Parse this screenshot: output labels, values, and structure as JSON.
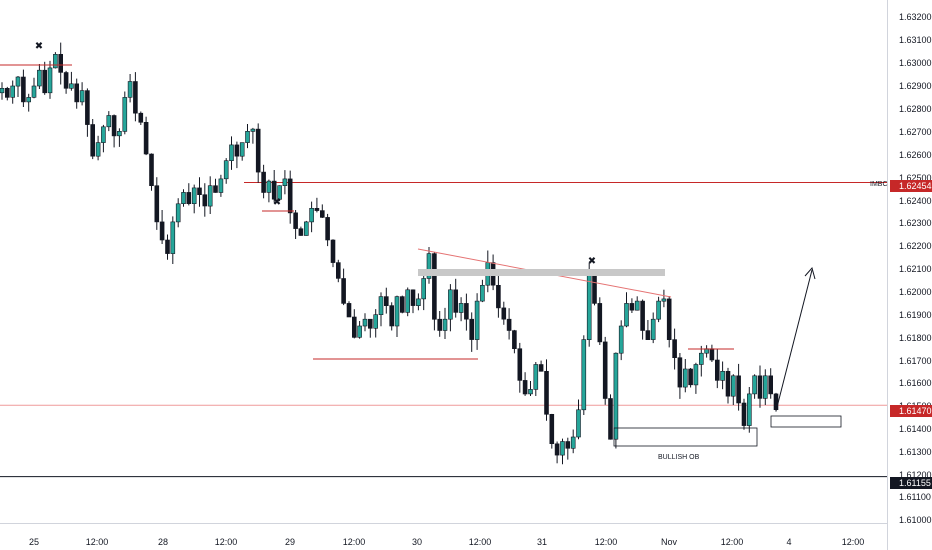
{
  "chart_data": {
    "type": "candlestick",
    "y_axis": {
      "ticks": [
        "1.63200",
        "1.63100",
        "1.63000",
        "1.62900",
        "1.62800",
        "1.62700",
        "1.62600",
        "1.62500",
        "1.62400",
        "1.62300",
        "1.62200",
        "1.62100",
        "1.62000",
        "1.61900",
        "1.61800",
        "1.61700",
        "1.61600",
        "1.61500",
        "1.61400",
        "1.61300",
        "1.61200",
        "1.61100",
        "1.61000"
      ],
      "ylim": [
        1.6095,
        1.6326
      ]
    },
    "x_axis": {
      "ticks": [
        "25",
        "12:00",
        "28",
        "12:00",
        "29",
        "12:00",
        "30",
        "12:00",
        "31",
        "12:00",
        "Nov",
        "12:00",
        "4",
        "12:00"
      ]
    },
    "price_labels": [
      {
        "value": "1.62454",
        "price": 1.62454,
        "color": "#c62828"
      },
      {
        "value": "1.61470",
        "price": 1.6147,
        "color": "#c62828"
      },
      {
        "value": "1.61155",
        "price": 1.61155,
        "color": "#131722"
      }
    ],
    "levels": [
      {
        "price": 1.62454,
        "label": "IMBC",
        "color": "#c62828"
      },
      {
        "price": 1.6147,
        "color": "#ef9a9a"
      },
      {
        "price": 1.61155,
        "color": "#131722"
      }
    ],
    "annotations": {
      "bullish_ob_label": "BULLISH OB",
      "x_markers": [
        "✖",
        "✖",
        "✖"
      ]
    },
    "price_series": [
      1.6287,
      1.6283,
      1.6288,
      1.6292,
      1.6281,
      1.6283,
      1.6288,
      1.6295,
      1.6285,
      1.6296,
      1.6302,
      1.6294,
      1.6287,
      1.6289,
      1.6281,
      1.6286,
      1.6271,
      1.6257,
      1.6263,
      1.627,
      1.6275,
      1.6266,
      1.6268,
      1.6283,
      1.629,
      1.6276,
      1.6272,
      1.6258,
      1.6244,
      1.6228,
      1.622,
      1.6214,
      1.6228,
      1.6236,
      1.6241,
      1.6236,
      1.6243,
      1.624,
      1.6235,
      1.6244,
      1.6241,
      1.6247,
      1.6255,
      1.6262,
      1.6257,
      1.6263,
      1.6268,
      1.6269,
      1.625,
      1.6241,
      1.6246,
      1.6238,
      1.6244,
      1.6247,
      1.6232,
      1.6225,
      1.6222,
      1.6228,
      1.6234,
      1.6233,
      1.623,
      1.622,
      1.621,
      1.6203,
      1.6192,
      1.6186,
      1.6177,
      1.6182,
      1.6185,
      1.6181,
      1.6187,
      1.6195,
      1.6191,
      1.6182,
      1.6195,
      1.6188,
      1.6198,
      1.6191,
      1.6194,
      1.6203,
      1.6214,
      1.6185,
      1.618,
      1.6185,
      1.6198,
      1.6188,
      1.6192,
      1.6185,
      1.6176,
      1.6193,
      1.62,
      1.621,
      1.62,
      1.619,
      1.6185,
      1.618,
      1.6172,
      1.6158,
      1.6152,
      1.6154,
      1.6165,
      1.6162,
      1.6143,
      1.613,
      1.6125,
      1.6131,
      1.6128,
      1.6133,
      1.6145,
      1.6176,
      1.6205,
      1.6192,
      1.6175,
      1.615,
      1.6132,
      1.617,
      1.6182,
      1.6192,
      1.6189,
      1.6193,
      1.618,
      1.6176,
      1.6185,
      1.6193,
      1.6194,
      1.6176,
      1.6168,
      1.6155,
      1.6163,
      1.6156,
      1.6165,
      1.617,
      1.6172,
      1.6167,
      1.6158,
      1.6162,
      1.6151,
      1.616,
      1.6148,
      1.6138,
      1.6152,
      1.616,
      1.615,
      1.616,
      1.6152,
      1.6145
    ]
  }
}
